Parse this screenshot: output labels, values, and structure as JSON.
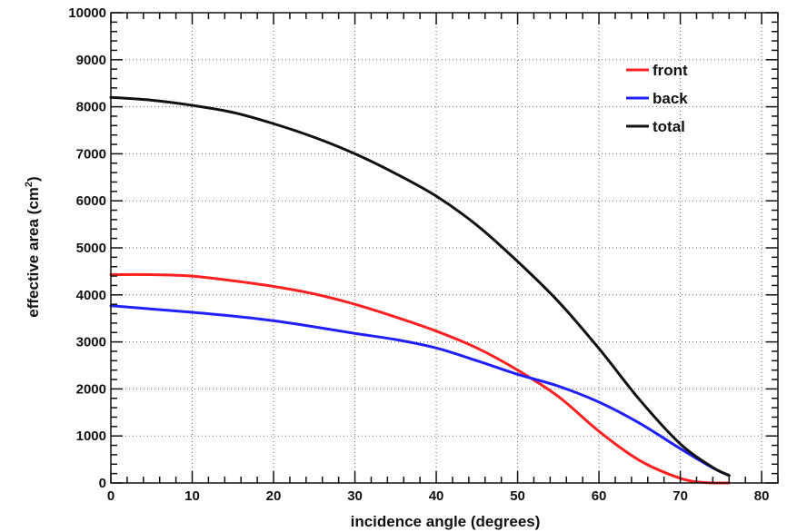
{
  "chart_data": {
    "type": "line",
    "xlabel": "incidence angle (degrees)",
    "ylabel_main": "effective area (cm",
    "ylabel_sup": "2",
    "ylabel_close": ")",
    "xlim": [
      0,
      82
    ],
    "ylim": [
      0,
      10000
    ],
    "x_ticks": [
      0,
      10,
      20,
      30,
      40,
      50,
      60,
      70,
      80
    ],
    "y_ticks": [
      0,
      1000,
      2000,
      3000,
      4000,
      5000,
      6000,
      7000,
      8000,
      9000,
      10000
    ],
    "grid": true,
    "grid_style": "dotted",
    "legend_position": "top-right",
    "series": [
      {
        "name": "front",
        "color": "#ff2020",
        "points": [
          [
            0,
            4430
          ],
          [
            5,
            4430
          ],
          [
            10,
            4400
          ],
          [
            15,
            4300
          ],
          [
            20,
            4180
          ],
          [
            25,
            4020
          ],
          [
            30,
            3800
          ],
          [
            35,
            3530
          ],
          [
            40,
            3230
          ],
          [
            45,
            2870
          ],
          [
            50,
            2400
          ],
          [
            55,
            1840
          ],
          [
            60,
            1100
          ],
          [
            65,
            480
          ],
          [
            70,
            100
          ],
          [
            73,
            10
          ],
          [
            76,
            0
          ]
        ]
      },
      {
        "name": "back",
        "color": "#2020ff",
        "points": [
          [
            0,
            3770
          ],
          [
            5,
            3700
          ],
          [
            10,
            3630
          ],
          [
            15,
            3550
          ],
          [
            20,
            3450
          ],
          [
            25,
            3320
          ],
          [
            30,
            3180
          ],
          [
            35,
            3050
          ],
          [
            40,
            2870
          ],
          [
            45,
            2600
          ],
          [
            50,
            2310
          ],
          [
            55,
            2060
          ],
          [
            60,
            1720
          ],
          [
            65,
            1270
          ],
          [
            70,
            730
          ],
          [
            74,
            320
          ],
          [
            76,
            160
          ]
        ]
      },
      {
        "name": "total",
        "color": "#111111",
        "points": [
          [
            0,
            8200
          ],
          [
            5,
            8140
          ],
          [
            10,
            8030
          ],
          [
            15,
            7880
          ],
          [
            20,
            7640
          ],
          [
            25,
            7350
          ],
          [
            30,
            7000
          ],
          [
            35,
            6580
          ],
          [
            40,
            6100
          ],
          [
            45,
            5480
          ],
          [
            50,
            4710
          ],
          [
            55,
            3860
          ],
          [
            60,
            2860
          ],
          [
            65,
            1770
          ],
          [
            70,
            830
          ],
          [
            74,
            330
          ],
          [
            76,
            160
          ]
        ]
      }
    ]
  }
}
